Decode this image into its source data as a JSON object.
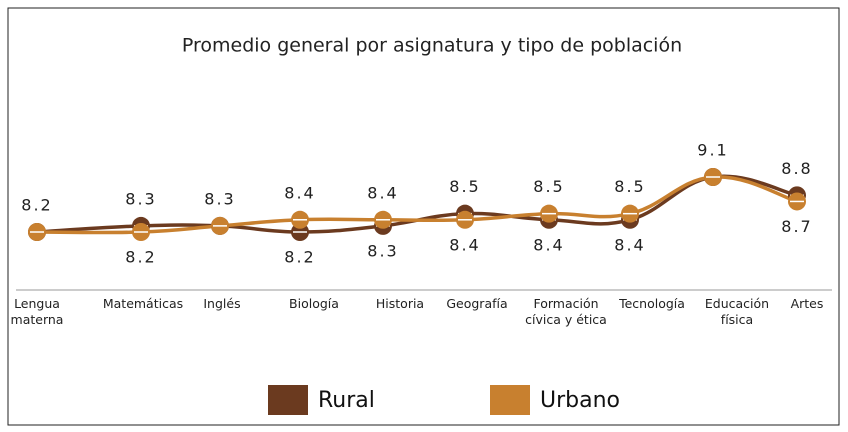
{
  "chart_data": {
    "type": "line",
    "title": "Promedio general por asignatura y tipo de población",
    "categories": [
      "Lengua materna",
      "Matemáticas",
      "Inglés",
      "Biología",
      "Historia",
      "Geografía",
      "Formación cívica y ética",
      "Tecnología",
      "Educación física",
      "Artes"
    ],
    "series": [
      {
        "name": "Rural",
        "color": "#6b3a1f",
        "values": [
          8.2,
          8.3,
          8.3,
          8.2,
          8.3,
          8.5,
          8.4,
          8.4,
          9.1,
          8.8
        ]
      },
      {
        "name": "Urbano",
        "color": "#c8802f",
        "values": [
          8.2,
          8.2,
          8.3,
          8.4,
          8.4,
          8.4,
          8.5,
          8.5,
          9.1,
          8.7
        ]
      }
    ]
  }
}
